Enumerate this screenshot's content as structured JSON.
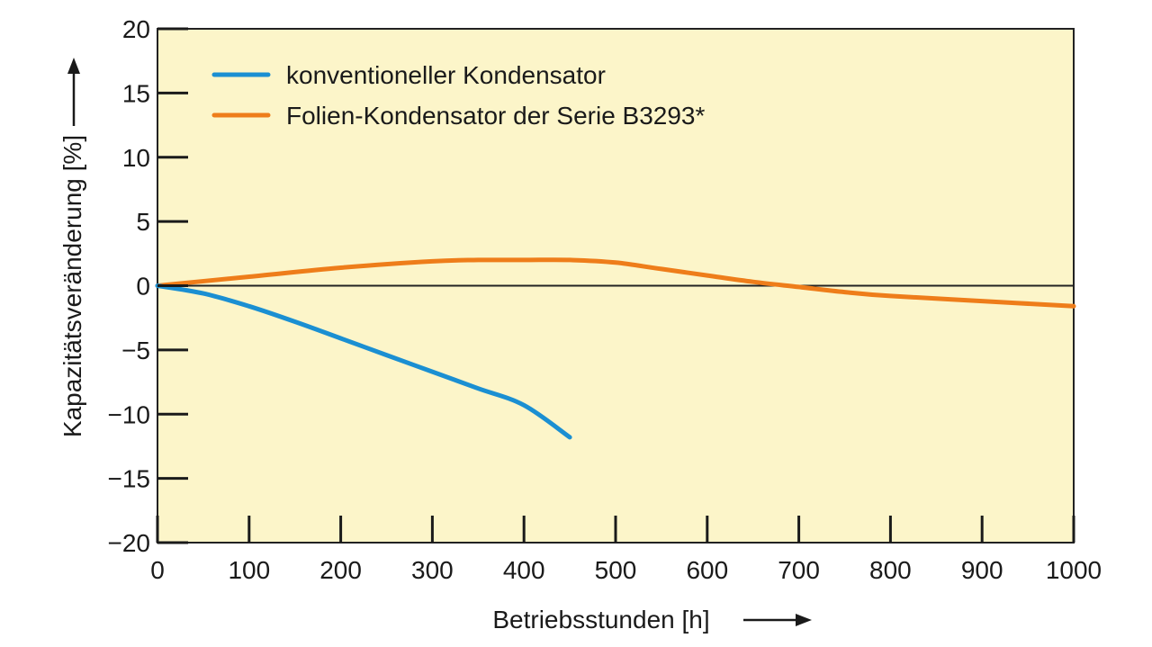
{
  "chart_data": {
    "type": "line",
    "xlabel": "Betriebsstunden [h]",
    "ylabel": "Kapazitätsveränderung [%]",
    "xlim": [
      0,
      1000
    ],
    "ylim": [
      -20,
      20
    ],
    "x_ticks": [
      0,
      100,
      200,
      300,
      400,
      500,
      600,
      700,
      800,
      900,
      1000
    ],
    "y_ticks": [
      20,
      15,
      10,
      5,
      0,
      -5,
      -10,
      -15,
      -20
    ],
    "y_tick_labels": [
      "20",
      "15",
      "10",
      "5",
      "0",
      "−5",
      "−10",
      "−15",
      "−20"
    ],
    "grid": false,
    "legend_position": "top-left",
    "background_color": "#fcf5c9",
    "series": [
      {
        "name": "konventioneller Kondensator",
        "color": "#1b8fd2",
        "x": [
          0,
          50,
          100,
          150,
          200,
          250,
          300,
          350,
          400,
          450
        ],
        "y": [
          0,
          -0.6,
          -1.6,
          -2.8,
          -4.1,
          -5.4,
          -6.7,
          -8.0,
          -9.3,
          -11.8
        ]
      },
      {
        "name": "Folien-Kondensator der Serie B3293*",
        "color": "#ee7d1a",
        "x": [
          0,
          100,
          200,
          300,
          350,
          400,
          450,
          500,
          550,
          600,
          650,
          700,
          750,
          800,
          900,
          1000
        ],
        "y": [
          0,
          0.7,
          1.4,
          1.9,
          2.0,
          2.0,
          2.0,
          1.8,
          1.3,
          0.8,
          0.3,
          -0.1,
          -0.5,
          -0.8,
          -1.2,
          -1.6
        ]
      }
    ]
  }
}
